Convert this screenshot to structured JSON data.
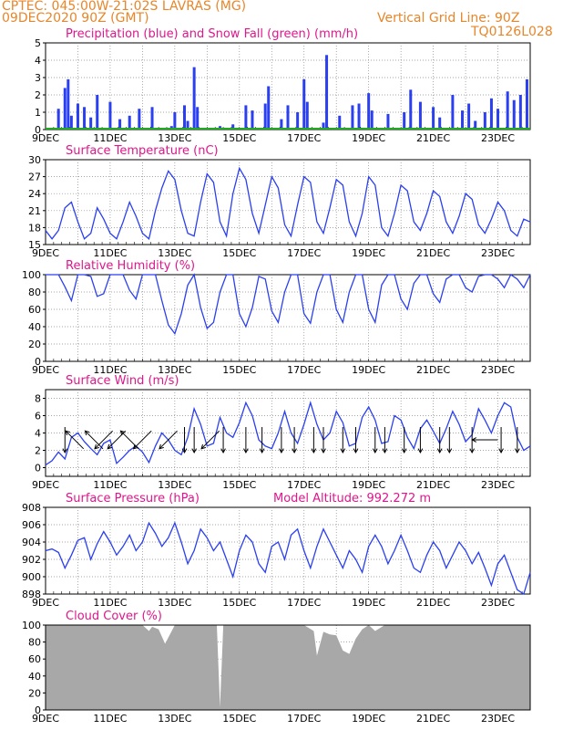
{
  "header": {
    "line1": "CPTEC:   045:00W-21:02S  LAVRAS (MG)",
    "line2": "09DEC2020 90Z (GMT)",
    "grid_note": "Vertical Grid Line: 90Z",
    "code": "TQ0126L028"
  },
  "colors": {
    "header": "#e8862a",
    "title": "#e0168c",
    "line": "#2a3ff0",
    "snow": "#22aa22",
    "cloud": "#a8a8a8",
    "grid": "#888888"
  },
  "x_ticks": [
    "9DEC",
    "11DEC",
    "13DEC",
    "15DEC",
    "17DEC",
    "19DEC",
    "21DEC",
    "23DEC"
  ],
  "x_range_days": [
    9.0,
    24.0
  ],
  "chart_data": [
    {
      "type": "bar",
      "title": "Precipitation (blue) and Snow Fall (green) (mm/h)",
      "ylim": [
        0,
        5
      ],
      "yticks": [
        0,
        1,
        2,
        3,
        4,
        5
      ],
      "series": [
        {
          "name": "Precipitation",
          "x": [
            9.4,
            9.6,
            9.7,
            9.8,
            10.0,
            10.2,
            10.4,
            10.6,
            11.0,
            11.3,
            11.6,
            11.9,
            12.3,
            12.9,
            13.0,
            13.3,
            13.4,
            13.6,
            13.7,
            14.4,
            14.8,
            15.2,
            15.4,
            15.8,
            15.9,
            16.3,
            16.5,
            16.8,
            17.0,
            17.1,
            17.6,
            17.7,
            18.1,
            18.5,
            18.7,
            19.0,
            19.1,
            19.6,
            20.1,
            20.3,
            20.6,
            21.0,
            21.2,
            21.6,
            21.9,
            22.1,
            22.3,
            22.6,
            22.8,
            23.0,
            23.3,
            23.5,
            23.7,
            23.9
          ],
          "y": [
            1.2,
            2.4,
            2.9,
            0.8,
            1.5,
            1.3,
            0.7,
            2.0,
            1.6,
            0.6,
            0.8,
            1.2,
            1.3,
            0.2,
            1.0,
            1.4,
            0.5,
            3.6,
            1.3,
            0.2,
            0.3,
            1.4,
            1.1,
            1.5,
            2.5,
            0.6,
            1.4,
            1.0,
            2.9,
            1.6,
            0.4,
            4.3,
            0.8,
            1.4,
            1.5,
            2.1,
            1.1,
            0.9,
            1.0,
            2.3,
            1.6,
            1.3,
            0.7,
            2.0,
            1.1,
            1.5,
            0.5,
            1.0,
            1.8,
            1.2,
            2.2,
            1.7,
            2.0,
            2.9
          ]
        },
        {
          "name": "Snow Fall",
          "x": [
            9.0,
            24.0
          ],
          "y": [
            0,
            0
          ]
        }
      ]
    },
    {
      "type": "line",
      "title": "Surface Temperature (nC)",
      "ylim": [
        15,
        30
      ],
      "yticks": [
        15,
        18,
        21,
        24,
        27,
        30
      ],
      "series": [
        {
          "name": "Temperature",
          "x": [
            9.0,
            9.2,
            9.4,
            9.6,
            9.8,
            10.0,
            10.2,
            10.4,
            10.6,
            10.8,
            11.0,
            11.2,
            11.4,
            11.6,
            11.8,
            12.0,
            12.2,
            12.4,
            12.6,
            12.8,
            13.0,
            13.2,
            13.4,
            13.6,
            13.8,
            14.0,
            14.2,
            14.4,
            14.6,
            14.8,
            15.0,
            15.2,
            15.4,
            15.6,
            15.8,
            16.0,
            16.2,
            16.4,
            16.6,
            16.8,
            17.0,
            17.2,
            17.4,
            17.6,
            17.8,
            18.0,
            18.2,
            18.4,
            18.6,
            18.8,
            19.0,
            19.2,
            19.4,
            19.6,
            19.8,
            20.0,
            20.2,
            20.4,
            20.6,
            20.8,
            21.0,
            21.2,
            21.4,
            21.6,
            21.8,
            22.0,
            22.2,
            22.4,
            22.6,
            22.8,
            23.0,
            23.2,
            23.4,
            23.6,
            23.8,
            24.0
          ],
          "y": [
            17.5,
            16.0,
            17.5,
            21.5,
            22.5,
            19.0,
            16.0,
            17.0,
            21.5,
            19.5,
            17.0,
            16.0,
            19.0,
            22.5,
            20.0,
            17.0,
            16.0,
            21.0,
            25.0,
            28.0,
            26.5,
            21.0,
            17.0,
            16.5,
            22.5,
            27.5,
            26.0,
            19.0,
            16.5,
            24.0,
            28.5,
            26.5,
            20.5,
            17.0,
            22.0,
            27.0,
            25.0,
            18.5,
            16.5,
            22.0,
            27.0,
            26.0,
            19.0,
            17.0,
            21.5,
            26.5,
            25.5,
            19.0,
            16.5,
            20.5,
            27.0,
            25.5,
            18.0,
            16.5,
            20.5,
            25.5,
            24.5,
            19.0,
            17.5,
            20.5,
            24.5,
            23.5,
            19.0,
            17.0,
            20.0,
            24.0,
            23.0,
            18.5,
            17.0,
            19.5,
            22.5,
            21.0,
            17.5,
            16.5,
            19.5,
            19.0
          ]
        }
      ]
    },
    {
      "type": "line",
      "title": "Relative Humidity (%)",
      "ylim": [
        0,
        100
      ],
      "yticks": [
        0,
        20,
        40,
        60,
        80,
        100
      ],
      "series": [
        {
          "name": "Relative Humidity",
          "x": [
            9.0,
            9.2,
            9.4,
            9.6,
            9.8,
            10.0,
            10.2,
            10.4,
            10.6,
            10.8,
            11.0,
            11.2,
            11.4,
            11.6,
            11.8,
            12.0,
            12.2,
            12.4,
            12.6,
            12.8,
            13.0,
            13.2,
            13.4,
            13.6,
            13.8,
            14.0,
            14.2,
            14.4,
            14.6,
            14.8,
            15.0,
            15.2,
            15.4,
            15.6,
            15.8,
            16.0,
            16.2,
            16.4,
            16.6,
            16.8,
            17.0,
            17.2,
            17.4,
            17.6,
            17.8,
            18.0,
            18.2,
            18.4,
            18.6,
            18.8,
            19.0,
            19.2,
            19.4,
            19.6,
            19.8,
            20.0,
            20.2,
            20.4,
            20.6,
            20.8,
            21.0,
            21.2,
            21.4,
            21.6,
            21.8,
            22.0,
            22.2,
            22.4,
            22.6,
            22.8,
            23.0,
            23.2,
            23.4,
            23.6,
            23.8,
            24.0
          ],
          "y": [
            100,
            100,
            100,
            86,
            70,
            100,
            100,
            98,
            75,
            78,
            100,
            100,
            100,
            82,
            72,
            100,
            100,
            100,
            70,
            42,
            32,
            55,
            88,
            100,
            62,
            38,
            45,
            80,
            100,
            100,
            55,
            40,
            62,
            98,
            95,
            58,
            45,
            80,
            100,
            100,
            55,
            44,
            80,
            100,
            100,
            60,
            45,
            80,
            100,
            100,
            60,
            45,
            88,
            100,
            100,
            72,
            60,
            90,
            100,
            100,
            78,
            68,
            95,
            100,
            100,
            85,
            80,
            98,
            100,
            100,
            95,
            85,
            100,
            95,
            85,
            100
          ]
        }
      ]
    },
    {
      "type": "line",
      "title": "Surface Wind (m/s)",
      "ylim": [
        -1,
        9
      ],
      "yticks": [
        0,
        2,
        4,
        6,
        8
      ],
      "series": [
        {
          "name": "Wind Speed",
          "x": [
            9.0,
            9.2,
            9.4,
            9.6,
            9.8,
            10.0,
            10.2,
            10.4,
            10.6,
            10.8,
            11.0,
            11.2,
            11.4,
            11.6,
            11.8,
            12.0,
            12.2,
            12.4,
            12.6,
            12.8,
            13.0,
            13.2,
            13.4,
            13.6,
            13.8,
            14.0,
            14.2,
            14.4,
            14.6,
            14.8,
            15.0,
            15.2,
            15.4,
            15.6,
            15.8,
            16.0,
            16.2,
            16.4,
            16.6,
            16.8,
            17.0,
            17.2,
            17.4,
            17.6,
            17.8,
            18.0,
            18.2,
            18.4,
            18.6,
            18.8,
            19.0,
            19.2,
            19.4,
            19.6,
            19.8,
            20.0,
            20.2,
            20.4,
            20.6,
            20.8,
            21.0,
            21.2,
            21.4,
            21.6,
            21.8,
            22.0,
            22.2,
            22.4,
            22.6,
            22.8,
            23.0,
            23.2,
            23.4,
            23.6,
            23.8,
            24.0
          ],
          "y": [
            0.3,
            0.8,
            1.8,
            1.0,
            3.5,
            4.0,
            3.0,
            2.2,
            1.5,
            2.8,
            3.2,
            0.5,
            1.2,
            2.0,
            2.5,
            1.8,
            0.6,
            2.5,
            4.0,
            3.2,
            2.0,
            1.5,
            3.5,
            6.8,
            5.0,
            2.5,
            2.8,
            5.8,
            4.0,
            3.5,
            5.2,
            7.5,
            6.0,
            3.2,
            2.5,
            2.2,
            4.0,
            6.5,
            4.0,
            2.8,
            5.0,
            7.5,
            5.0,
            3.2,
            4.0,
            6.5,
            5.2,
            2.5,
            2.8,
            5.8,
            7.0,
            5.5,
            2.8,
            3.0,
            6.0,
            5.5,
            3.5,
            2.2,
            4.5,
            5.5,
            4.2,
            2.8,
            4.5,
            6.5,
            5.0,
            3.0,
            3.8,
            6.8,
            5.5,
            4.0,
            6.0,
            7.5,
            7.0,
            3.5,
            2.0,
            2.5
          ]
        }
      ],
      "arrows": [
        {
          "day": 9.6,
          "dir": "S"
        },
        {
          "day": 9.9,
          "dir": "NW"
        },
        {
          "day": 10.5,
          "dir": "NW"
        },
        {
          "day": 10.8,
          "dir": "SW"
        },
        {
          "day": 11.2,
          "dir": "SW"
        },
        {
          "day": 11.6,
          "dir": "NW"
        },
        {
          "day": 12.0,
          "dir": "SW"
        },
        {
          "day": 12.8,
          "dir": "SW"
        },
        {
          "day": 13.3,
          "dir": "S"
        },
        {
          "day": 13.6,
          "dir": "S"
        },
        {
          "day": 14.1,
          "dir": "SW"
        },
        {
          "day": 14.5,
          "dir": "S"
        },
        {
          "day": 15.2,
          "dir": "S"
        },
        {
          "day": 15.7,
          "dir": "S"
        },
        {
          "day": 16.3,
          "dir": "S"
        },
        {
          "day": 16.7,
          "dir": "S"
        },
        {
          "day": 17.3,
          "dir": "S"
        },
        {
          "day": 17.6,
          "dir": "S"
        },
        {
          "day": 18.2,
          "dir": "S"
        },
        {
          "day": 18.6,
          "dir": "S"
        },
        {
          "day": 19.2,
          "dir": "S"
        },
        {
          "day": 19.5,
          "dir": "S"
        },
        {
          "day": 20.1,
          "dir": "S"
        },
        {
          "day": 20.6,
          "dir": "S"
        },
        {
          "day": 21.2,
          "dir": "S"
        },
        {
          "day": 21.5,
          "dir": "S"
        },
        {
          "day": 22.2,
          "dir": "S"
        },
        {
          "day": 22.6,
          "dir": "W"
        },
        {
          "day": 23.1,
          "dir": "S"
        },
        {
          "day": 23.6,
          "dir": "S"
        }
      ]
    },
    {
      "type": "line",
      "title": "Surface Pressure (hPa)",
      "annotation": "Model Altitude: 992.272 m",
      "ylim": [
        898,
        908
      ],
      "yticks": [
        898,
        900,
        902,
        904,
        906,
        908
      ],
      "series": [
        {
          "name": "Pressure",
          "x": [
            9.0,
            9.2,
            9.4,
            9.6,
            9.8,
            10.0,
            10.2,
            10.4,
            10.6,
            10.8,
            11.0,
            11.2,
            11.4,
            11.6,
            11.8,
            12.0,
            12.2,
            12.4,
            12.6,
            12.8,
            13.0,
            13.2,
            13.4,
            13.6,
            13.8,
            14.0,
            14.2,
            14.4,
            14.6,
            14.8,
            15.0,
            15.2,
            15.4,
            15.6,
            15.8,
            16.0,
            16.2,
            16.4,
            16.6,
            16.8,
            17.0,
            17.2,
            17.4,
            17.6,
            17.8,
            18.0,
            18.2,
            18.4,
            18.6,
            18.8,
            19.0,
            19.2,
            19.4,
            19.6,
            19.8,
            20.0,
            20.2,
            20.4,
            20.6,
            20.8,
            21.0,
            21.2,
            21.4,
            21.6,
            21.8,
            22.0,
            22.2,
            22.4,
            22.6,
            22.8,
            23.0,
            23.2,
            23.4,
            23.6,
            23.8,
            24.0
          ],
          "y": [
            903.0,
            903.2,
            902.8,
            901.0,
            902.5,
            904.2,
            904.5,
            902.0,
            903.8,
            905.2,
            904.0,
            902.5,
            903.5,
            904.8,
            903.0,
            904.0,
            906.2,
            905.0,
            903.5,
            904.5,
            906.2,
            904.0,
            901.5,
            903.0,
            905.5,
            904.5,
            903.0,
            904.0,
            902.0,
            900.0,
            903.0,
            904.8,
            904.0,
            901.5,
            900.5,
            903.5,
            904.0,
            902.0,
            904.8,
            905.5,
            903.0,
            901.0,
            903.5,
            905.5,
            904.0,
            902.5,
            901.0,
            903.0,
            902.0,
            900.5,
            903.5,
            904.8,
            903.5,
            901.5,
            903.0,
            904.8,
            903.0,
            901.0,
            900.5,
            902.5,
            904.0,
            903.0,
            901.0,
            902.5,
            904.0,
            903.0,
            901.5,
            902.8,
            901.0,
            899.0,
            901.5,
            902.5,
            900.5,
            898.5,
            898.0,
            900.5
          ]
        }
      ]
    },
    {
      "type": "area",
      "title": "Cloud Cover (%)",
      "ylim": [
        0,
        100
      ],
      "yticks": [
        0,
        20,
        40,
        60,
        80,
        100
      ],
      "series": [
        {
          "name": "Cloud Cover",
          "x": [
            9.0,
            11.0,
            12.0,
            12.2,
            12.3,
            12.5,
            12.7,
            13.0,
            13.5,
            14.0,
            14.3,
            14.4,
            14.5,
            14.6,
            15.0,
            15.5,
            16.0,
            17.0,
            17.3,
            17.4,
            17.6,
            17.8,
            18.0,
            18.2,
            18.4,
            18.6,
            18.8,
            19.0,
            19.2,
            19.5,
            20.0,
            21.0,
            22.0,
            23.0,
            24.0
          ],
          "y": [
            100,
            100,
            100,
            93,
            98,
            95,
            78,
            100,
            100,
            100,
            100,
            3,
            100,
            100,
            100,
            100,
            100,
            100,
            93,
            64,
            92,
            89,
            88,
            70,
            66,
            84,
            95,
            100,
            93,
            100,
            100,
            100,
            100,
            100,
            100
          ]
        }
      ]
    }
  ]
}
